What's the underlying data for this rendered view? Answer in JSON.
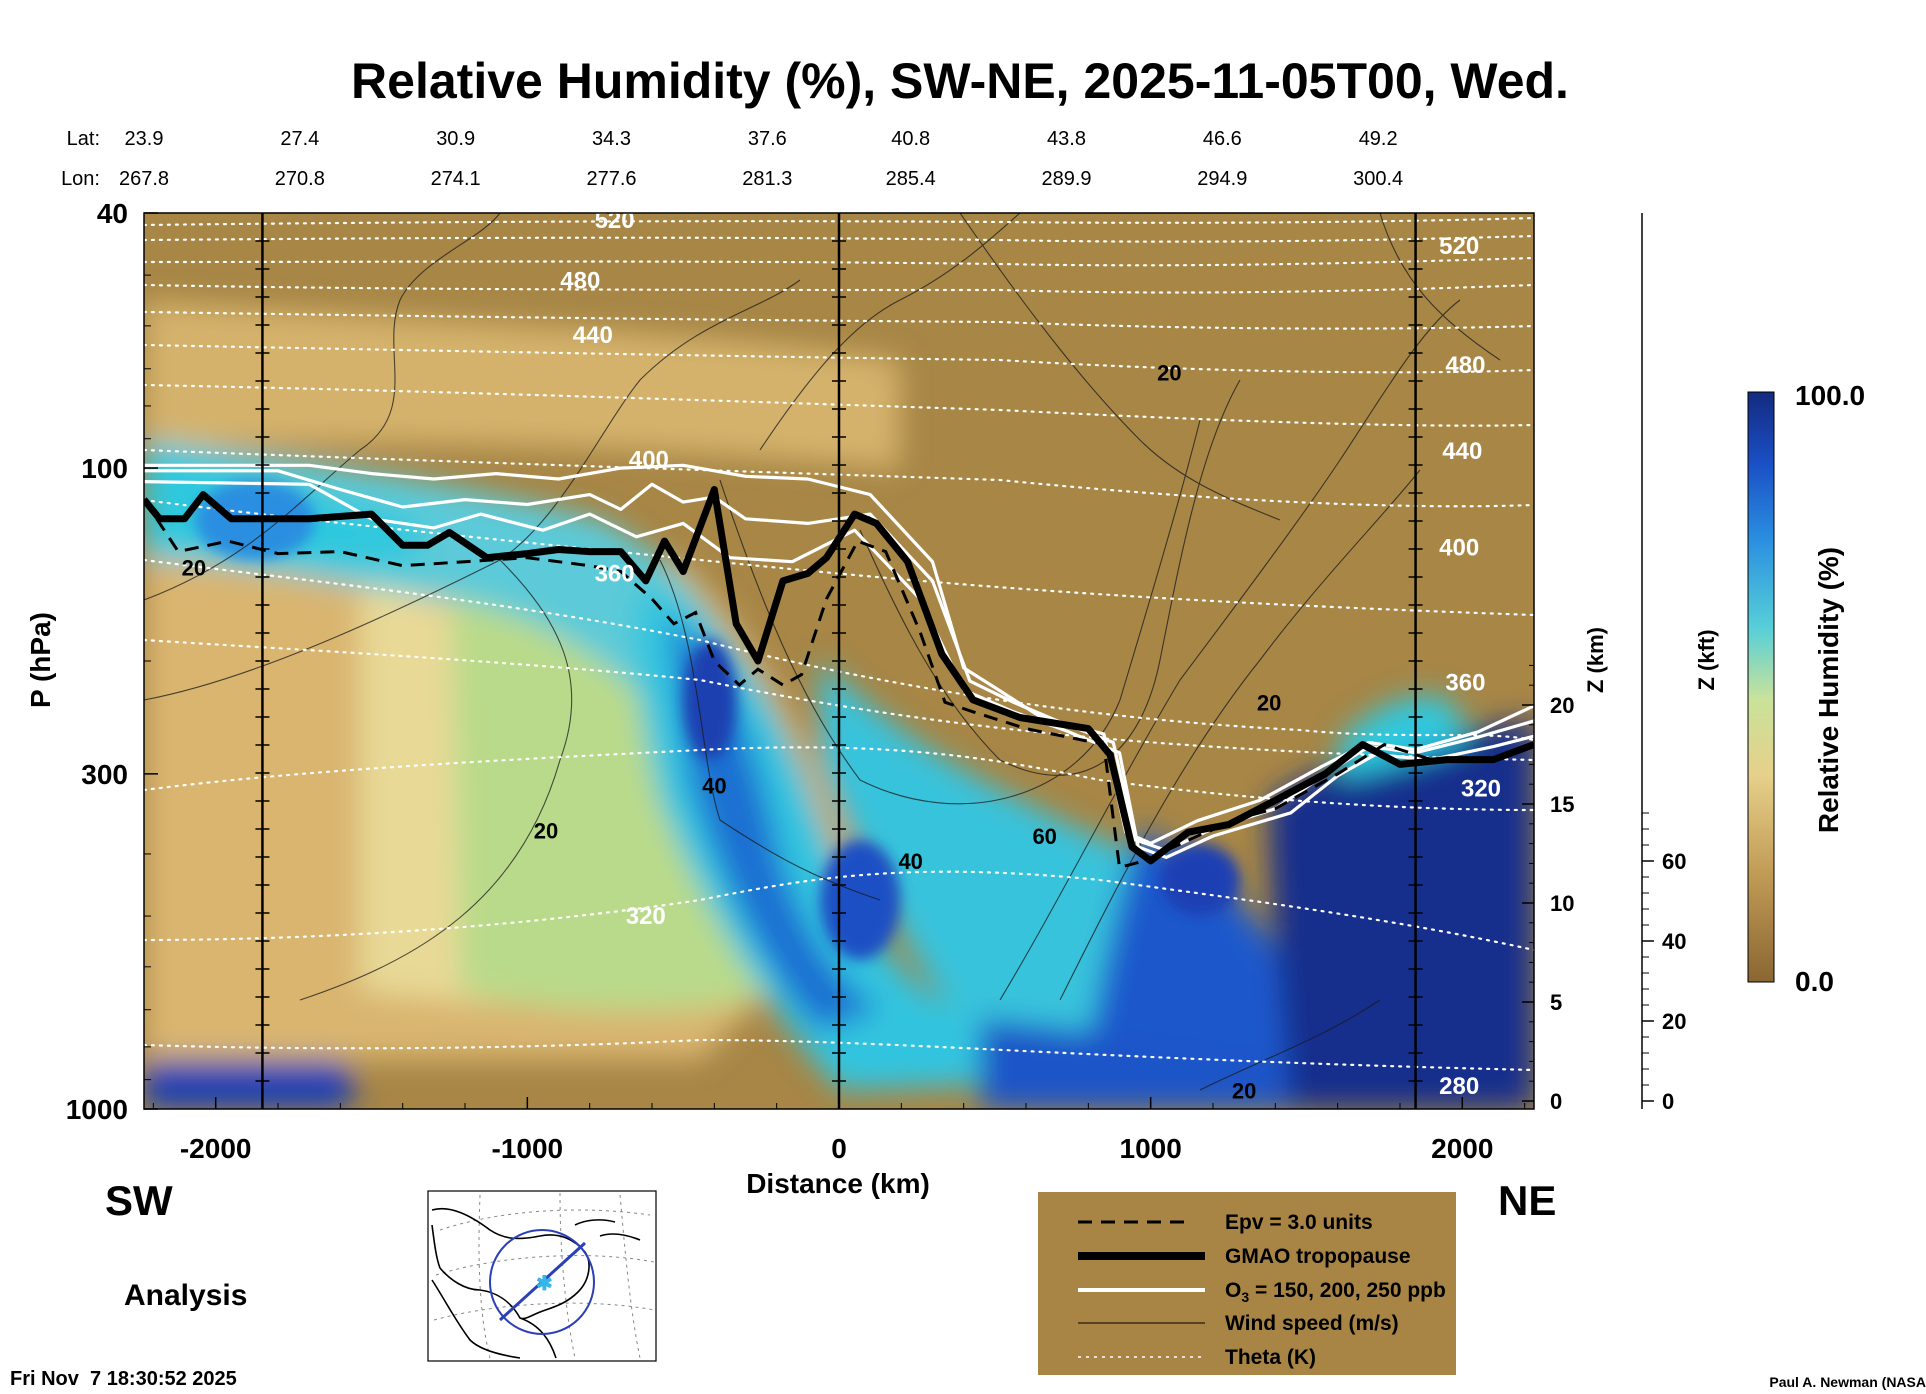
{
  "chart_data": {
    "type": "heatmap",
    "title": "Relative Humidity (%), SW-NE, 2025-11-05T00, Wed.",
    "xlabel": "Distance (km)",
    "ylabel": "P (hPa)",
    "y2label": "Z (km)",
    "y3label": "Z (kft)",
    "colorbar_label": "Relative Humidity (%)",
    "colorbar_max": "100.0",
    "colorbar_min": "0.0",
    "xlim": [
      -2230,
      2230
    ],
    "ylim_hpa": [
      1000,
      40
    ],
    "y_log_scale": true,
    "x_ticks": [
      {
        "v": -2000,
        "t": "-2000"
      },
      {
        "v": -1000,
        "t": "-1000"
      },
      {
        "v": 0,
        "t": "0"
      },
      {
        "v": 1000,
        "t": "1000"
      },
      {
        "v": 2000,
        "t": "2000"
      }
    ],
    "y_ticks": [
      {
        "v": 40,
        "t": "40"
      },
      {
        "v": 100,
        "t": "100"
      },
      {
        "v": 300,
        "t": "300"
      },
      {
        "v": 1000,
        "t": "1000"
      }
    ],
    "z_km_ticks": [
      {
        "v": 20,
        "t": "20"
      },
      {
        "v": 15,
        "t": "15"
      },
      {
        "v": 10,
        "t": "10"
      },
      {
        "v": 5,
        "t": "5"
      },
      {
        "v": 0,
        "t": "0"
      }
    ],
    "z_kft_ticks": [
      {
        "v": 60,
        "t": "60"
      },
      {
        "v": 40,
        "t": "40"
      },
      {
        "v": 20,
        "t": "20"
      },
      {
        "v": 0,
        "t": "0"
      }
    ],
    "lat_label": "Lat:",
    "lon_label": "Lon:",
    "lat_values": [
      "23.9",
      "27.4",
      "30.9",
      "34.3",
      "37.6",
      "40.8",
      "43.8",
      "46.6",
      "49.2"
    ],
    "lon_values": [
      "267.8",
      "270.8",
      "274.1",
      "277.6",
      "281.3",
      "285.4",
      "289.9",
      "294.9",
      "300.4"
    ],
    "coordinate_distances_km": [
      -2230,
      -1730,
      -1230,
      -730,
      -230,
      230,
      730,
      1230,
      1730
    ],
    "vertical_lines_km": [
      -1850,
      0,
      1850
    ],
    "theta_labels": [
      {
        "text": "520",
        "x": -720,
        "p": 41
      },
      {
        "text": "480",
        "x": -830,
        "p": 51
      },
      {
        "text": "440",
        "x": -790,
        "p": 62
      },
      {
        "text": "400",
        "x": -610,
        "p": 97
      },
      {
        "text": "360",
        "x": -720,
        "p": 146
      },
      {
        "text": "320",
        "x": -620,
        "p": 500
      },
      {
        "text": "520",
        "x": 1990,
        "p": 45
      },
      {
        "text": "480",
        "x": 2010,
        "p": 69
      },
      {
        "text": "440",
        "x": 2000,
        "p": 94
      },
      {
        "text": "400",
        "x": 1990,
        "p": 133
      },
      {
        "text": "360",
        "x": 2010,
        "p": 216
      },
      {
        "text": "320",
        "x": 2060,
        "p": 316
      },
      {
        "text": "280",
        "x": 1990,
        "p": 920
      }
    ],
    "wind_labels": [
      {
        "text": "20",
        "x": 1060,
        "p": 71
      },
      {
        "text": "20",
        "x": -2070,
        "p": 143
      },
      {
        "text": "40",
        "x": -400,
        "p": 313
      },
      {
        "text": "20",
        "x": -940,
        "p": 368
      },
      {
        "text": "40",
        "x": 230,
        "p": 410
      },
      {
        "text": "60",
        "x": 660,
        "p": 375
      },
      {
        "text": "20",
        "x": 1380,
        "p": 232
      },
      {
        "text": "20",
        "x": 1300,
        "p": 935
      }
    ],
    "tropopause_hpa": [
      [
        -2230,
        112
      ],
      [
        -2180,
        120
      ],
      [
        -2100,
        120
      ],
      [
        -2040,
        110
      ],
      [
        -1950,
        120
      ],
      [
        -1700,
        120
      ],
      [
        -1500,
        118
      ],
      [
        -1400,
        132
      ],
      [
        -1320,
        132
      ],
      [
        -1250,
        126
      ],
      [
        -1130,
        138
      ],
      [
        -1000,
        136
      ],
      [
        -900,
        134
      ],
      [
        -800,
        135
      ],
      [
        -700,
        135
      ],
      [
        -620,
        150
      ],
      [
        -560,
        130
      ],
      [
        -500,
        145
      ],
      [
        -400,
        108
      ],
      [
        -330,
        175
      ],
      [
        -260,
        200
      ],
      [
        -180,
        150
      ],
      [
        -100,
        146
      ],
      [
        -40,
        138
      ],
      [
        50,
        118
      ],
      [
        120,
        122
      ],
      [
        220,
        140
      ],
      [
        330,
        195
      ],
      [
        430,
        230
      ],
      [
        580,
        245
      ],
      [
        800,
        255
      ],
      [
        870,
        280
      ],
      [
        940,
        390
      ],
      [
        1000,
        410
      ],
      [
        1120,
        370
      ],
      [
        1250,
        360
      ],
      [
        1400,
        330
      ],
      [
        1560,
        300
      ],
      [
        1680,
        270
      ],
      [
        1800,
        290
      ],
      [
        1950,
        285
      ],
      [
        2100,
        285
      ],
      [
        2230,
        270
      ]
    ],
    "epv_hpa": [
      [
        -2230,
        112
      ],
      [
        -2120,
        135
      ],
      [
        -1960,
        130
      ],
      [
        -1800,
        136
      ],
      [
        -1600,
        135
      ],
      [
        -1400,
        142
      ],
      [
        -1200,
        140
      ],
      [
        -1000,
        138
      ],
      [
        -800,
        142
      ],
      [
        -700,
        145
      ],
      [
        -600,
        160
      ],
      [
        -530,
        175
      ],
      [
        -460,
        168
      ],
      [
        -400,
        200
      ],
      [
        -320,
        218
      ],
      [
        -260,
        206
      ],
      [
        -180,
        218
      ],
      [
        -120,
        210
      ],
      [
        -40,
        160
      ],
      [
        60,
        130
      ],
      [
        150,
        135
      ],
      [
        260,
        180
      ],
      [
        340,
        232
      ],
      [
        430,
        240
      ],
      [
        600,
        255
      ],
      [
        850,
        270
      ],
      [
        900,
        420
      ],
      [
        980,
        410
      ],
      [
        1150,
        375
      ],
      [
        1300,
        350
      ],
      [
        1400,
        340
      ],
      [
        1600,
        300
      ],
      [
        1750,
        270
      ],
      [
        1900,
        285
      ],
      [
        2000,
        283
      ]
    ],
    "ozone_hpa": [
      [
        [
          -2230,
          99
        ],
        [
          -1700,
          99
        ],
        [
          -1500,
          102
        ],
        [
          -1300,
          104
        ],
        [
          -1100,
          102
        ],
        [
          -900,
          104
        ],
        [
          -700,
          100
        ],
        [
          -500,
          99
        ],
        [
          -300,
          103
        ],
        [
          -100,
          104
        ],
        [
          100,
          110
        ],
        [
          300,
          140
        ],
        [
          400,
          205
        ],
        [
          500,
          220
        ],
        [
          650,
          245
        ],
        [
          850,
          260
        ],
        [
          920,
          370
        ],
        [
          1000,
          385
        ],
        [
          1150,
          355
        ],
        [
          1350,
          330
        ],
        [
          1550,
          292
        ],
        [
          1700,
          268
        ],
        [
          1850,
          275
        ],
        [
          2050,
          258
        ],
        [
          2230,
          235
        ]
      ],
      [
        [
          -2230,
          101
        ],
        [
          -1800,
          101
        ],
        [
          -1600,
          108
        ],
        [
          -1400,
          115
        ],
        [
          -1200,
          112
        ],
        [
          -1000,
          114
        ],
        [
          -800,
          110
        ],
        [
          -700,
          116
        ],
        [
          -600,
          106
        ],
        [
          -500,
          113
        ],
        [
          -400,
          111
        ],
        [
          -300,
          120
        ],
        [
          -100,
          122
        ],
        [
          100,
          118
        ],
        [
          300,
          150
        ],
        [
          420,
          215
        ],
        [
          560,
          232
        ],
        [
          700,
          248
        ],
        [
          880,
          268
        ],
        [
          950,
          380
        ],
        [
          1050,
          395
        ],
        [
          1200,
          365
        ],
        [
          1400,
          340
        ],
        [
          1580,
          296
        ],
        [
          1700,
          272
        ],
        [
          1850,
          278
        ],
        [
          2050,
          263
        ],
        [
          2230,
          248
        ]
      ],
      [
        [
          -2230,
          105
        ],
        [
          -1700,
          106
        ],
        [
          -1500,
          120
        ],
        [
          -1300,
          124
        ],
        [
          -1150,
          118
        ],
        [
          -950,
          125
        ],
        [
          -800,
          118
        ],
        [
          -650,
          128
        ],
        [
          -500,
          122
        ],
        [
          -350,
          138
        ],
        [
          -150,
          140
        ],
        [
          50,
          125
        ],
        [
          260,
          160
        ],
        [
          400,
          222
        ],
        [
          560,
          240
        ],
        [
          720,
          256
        ],
        [
          900,
          278
        ],
        [
          960,
          390
        ],
        [
          1050,
          405
        ],
        [
          1200,
          375
        ],
        [
          1450,
          345
        ],
        [
          1600,
          302
        ],
        [
          1720,
          280
        ],
        [
          1900,
          285
        ],
        [
          2100,
          272
        ],
        [
          2230,
          262
        ]
      ]
    ],
    "legend": {
      "epv": "Epv = 3.0 units",
      "tropopause": "GMAO tropopause",
      "ozone_prefix": "O",
      "ozone_sub": "3",
      "ozone_suffix": " = 150, 200, 250 ppb",
      "wind": "Wind speed (m/s)",
      "theta": "Theta (K)"
    },
    "colors": {
      "brown_dark": "#8a6632",
      "brown": "#a78646",
      "tan": "#d4b26c",
      "light": "#e9dc96",
      "green": "#b6d88a",
      "cyan": "#2ec8de",
      "blue": "#1660cf",
      "navy": "#142e8c",
      "legend_bg": "#a88544"
    }
  },
  "labels": {
    "left_dir": "SW",
    "right_dir": "NE",
    "analysis": "Analysis",
    "timestamp": "Fri Nov  7 18:30:52 2025",
    "credit": "Paul A. Newman (NASA"
  }
}
